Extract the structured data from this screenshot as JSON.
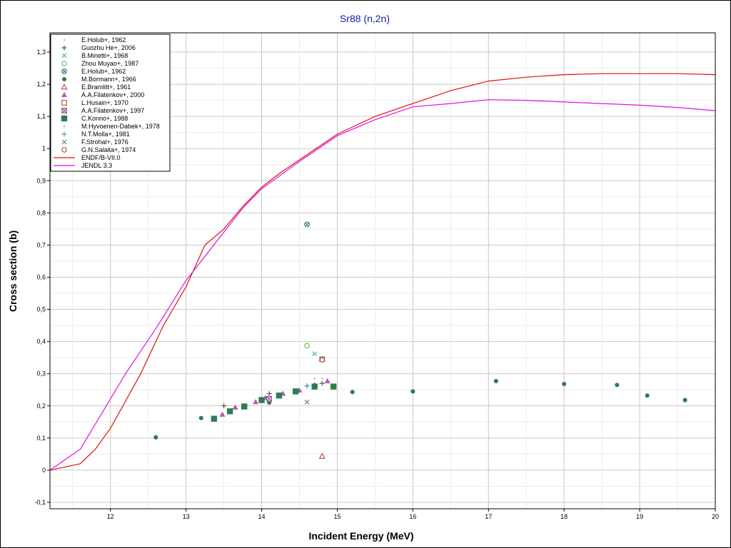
{
  "chart_data": {
    "type": "scatter",
    "title": "Sr88 (n,2n)",
    "xlabel": "Incident Energy (MeV)",
    "ylabel": "Cross section (b)",
    "xlim": [
      11.2,
      20
    ],
    "ylim": [
      -0.12,
      1.36
    ],
    "x_ticks": [
      12,
      13,
      14,
      15,
      16,
      17,
      18,
      19,
      20
    ],
    "x_tick_labels": [
      "12",
      "13",
      "14",
      "15",
      "16",
      "17",
      "18",
      "19",
      "20"
    ],
    "y_ticks": [
      -0.1,
      0,
      0.1,
      0.2,
      0.3,
      0.4,
      0.5,
      0.6,
      0.7,
      0.8,
      0.9,
      1,
      1.1,
      1.2,
      1.3
    ],
    "y_tick_labels": [
      "-0,1",
      "0",
      "0,1",
      "0,2",
      "0,3",
      "0,4",
      "0,5",
      "0,6",
      "0,7",
      "0,8",
      "0,9",
      "1",
      "1,1",
      "1,2",
      "1,3"
    ],
    "grid": true,
    "legend_position": "top-left",
    "series": [
      {
        "name": "E.Holub+, 1962",
        "marker": "dot",
        "color": "#4a8a5a",
        "points": [
          [
            14.8,
            0.285
          ]
        ]
      },
      {
        "name": "Guozhu He+, 2006",
        "marker": "plus",
        "color": "#555555",
        "points": [
          [
            13.5,
            0.2
          ],
          [
            14.1,
            0.238
          ],
          [
            14.6,
            0.262
          ],
          [
            14.8,
            0.27
          ]
        ]
      },
      {
        "name": "B.Minetti+, 1968",
        "marker": "x",
        "color": "#3aa6a6",
        "points": [
          [
            14.7,
            0.362
          ]
        ]
      },
      {
        "name": "Zhou Muyao+, 1987",
        "marker": "circle-open",
        "color": "#7ac043",
        "points": [
          [
            14.6,
            0.387
          ]
        ]
      },
      {
        "name": "E.Holub+, 1962",
        "marker": "circle-x",
        "color": "#3c7a7a",
        "points": [
          [
            14.6,
            0.764
          ]
        ]
      },
      {
        "name": "M.Bormann+, 1966",
        "marker": "hexagon-filled",
        "color": "#2f7a4f",
        "points": [
          [
            12.6,
            0.102
          ],
          [
            13.2,
            0.162
          ],
          [
            14.1,
            0.21
          ],
          [
            15.2,
            0.243
          ],
          [
            16.0,
            0.245
          ],
          [
            17.1,
            0.277
          ],
          [
            18.0,
            0.268
          ],
          [
            18.7,
            0.265
          ],
          [
            19.1,
            0.232
          ],
          [
            19.6,
            0.218
          ]
        ]
      },
      {
        "name": "E.Bramlitt+, 1961",
        "marker": "triangle-open",
        "color": "#c04040",
        "points": [
          [
            14.8,
            0.043
          ]
        ]
      },
      {
        "name": "A.A.Filatenkov+, 2000",
        "marker": "triangle-filled",
        "color": "#b05cb0",
        "points": [
          [
            13.48,
            0.173
          ],
          [
            13.65,
            0.195
          ],
          [
            13.92,
            0.212
          ],
          [
            14.05,
            0.225
          ],
          [
            14.28,
            0.238
          ],
          [
            14.5,
            0.248
          ],
          [
            14.7,
            0.265
          ],
          [
            14.87,
            0.277
          ]
        ]
      },
      {
        "name": "L.Husain+, 1970",
        "marker": "square-open",
        "color": "#a05a3a",
        "points": [
          [
            14.8,
            0.345
          ]
        ]
      },
      {
        "name": "A.A.Filatenkov+, 1997",
        "marker": "square-x",
        "color": "#9a4a8a",
        "points": [
          [
            14.1,
            0.222
          ]
        ]
      },
      {
        "name": "C.Konno+, 1988",
        "marker": "square-filled",
        "color": "#2e7d4f",
        "points": [
          [
            13.37,
            0.16
          ],
          [
            13.58,
            0.183
          ],
          [
            13.77,
            0.198
          ],
          [
            14.0,
            0.218
          ],
          [
            14.23,
            0.232
          ],
          [
            14.45,
            0.245
          ],
          [
            14.7,
            0.26
          ],
          [
            14.95,
            0.26
          ]
        ]
      },
      {
        "name": "M.Hyvoenen-Dabek+, 1978",
        "marker": "dot",
        "color": "#556b55",
        "points": [
          [
            14.7,
            0.285
          ]
        ]
      },
      {
        "name": "N.T.Molla+, 1981",
        "marker": "plus",
        "color": "#3aa6a6",
        "points": [
          [
            14.6,
            0.262
          ]
        ]
      },
      {
        "name": "F.Strohal+, 1976",
        "marker": "x",
        "color": "#6a6a9a",
        "points": [
          [
            14.6,
            0.212
          ]
        ]
      },
      {
        "name": "G.N.Salaita+, 1974",
        "marker": "pentagon-open",
        "color": "#a0504a",
        "points": [
          [
            14.8,
            0.343
          ]
        ]
      },
      {
        "name": "ENDF/B-VII.0",
        "marker": "line",
        "color": "#e01010",
        "points": [
          [
            11.2,
            0.0
          ],
          [
            11.6,
            0.02
          ],
          [
            11.8,
            0.065
          ],
          [
            12.0,
            0.13
          ],
          [
            12.4,
            0.3
          ],
          [
            12.7,
            0.45
          ],
          [
            13.0,
            0.57
          ],
          [
            13.25,
            0.7
          ],
          [
            13.5,
            0.75
          ],
          [
            13.75,
            0.82
          ],
          [
            14.0,
            0.88
          ],
          [
            14.25,
            0.925
          ],
          [
            14.5,
            0.965
          ],
          [
            14.75,
            1.005
          ],
          [
            15.0,
            1.045
          ],
          [
            15.5,
            1.1
          ],
          [
            16.0,
            1.14
          ],
          [
            16.5,
            1.18
          ],
          [
            17.0,
            1.21
          ],
          [
            17.5,
            1.222
          ],
          [
            18.0,
            1.23
          ],
          [
            18.5,
            1.233
          ],
          [
            19.0,
            1.233
          ],
          [
            19.5,
            1.233
          ],
          [
            20.0,
            1.23
          ]
        ]
      },
      {
        "name": "JENDL 3.3",
        "marker": "line",
        "color": "#e010e0",
        "points": [
          [
            11.2,
            0.0
          ],
          [
            11.6,
            0.065
          ],
          [
            12.2,
            0.3
          ],
          [
            12.6,
            0.44
          ],
          [
            13.0,
            0.59
          ],
          [
            13.5,
            0.74
          ],
          [
            13.75,
            0.815
          ],
          [
            14.0,
            0.875
          ],
          [
            14.5,
            0.96
          ],
          [
            15.0,
            1.04
          ],
          [
            15.5,
            1.09
          ],
          [
            16.0,
            1.13
          ],
          [
            16.5,
            1.14
          ],
          [
            17.0,
            1.152
          ],
          [
            17.5,
            1.15
          ],
          [
            18.0,
            1.145
          ],
          [
            18.5,
            1.14
          ],
          [
            19.0,
            1.135
          ],
          [
            19.5,
            1.128
          ],
          [
            20.0,
            1.118
          ]
        ]
      }
    ]
  }
}
